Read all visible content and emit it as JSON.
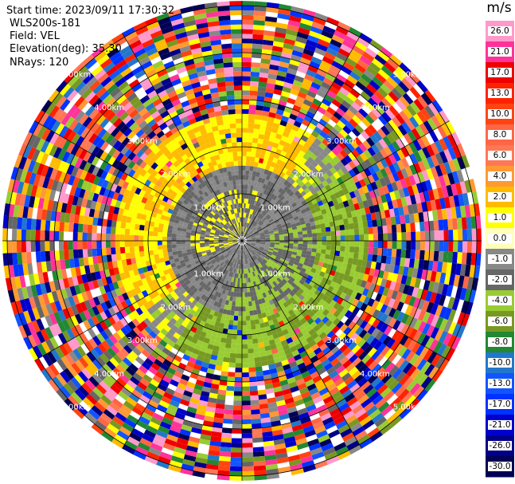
{
  "header": {
    "start_time": "Start time: 2023/09/11 17:30:32",
    "instrument": "WLS200s-181",
    "field": "Field: VEL",
    "elevation": "Elevation(deg): 35.30",
    "nrays": "NRays: 120"
  },
  "chart_data": {
    "type": "heatmap",
    "projection": "polar-ppi",
    "title": "",
    "nrays": 120,
    "range_ring_labels_km": [
      "1.00km",
      "2.00km",
      "3.00km",
      "4.00km",
      "5.00km"
    ],
    "range_rings_km": [
      1,
      2,
      3,
      4,
      5
    ],
    "max_range_km": 5.1,
    "colorbar": {
      "unit": "m/s",
      "tick_labels": [
        "26.0",
        "21.0",
        "17.0",
        "13.0",
        "10.0",
        "8.0",
        "6.0",
        "4.0",
        "2.0",
        "1.0",
        "0.0",
        "-1.0",
        "-2.0",
        "-4.0",
        "-6.0",
        "-8.0",
        "-10.0",
        "-13.0",
        "-17.0",
        "-21.0",
        "-26.0",
        "-30.0"
      ],
      "colors": [
        "#ff99cc",
        "#ff3399",
        "#ee0000",
        "#ff2200",
        "#ff4411",
        "#ff6644",
        "#ff7755",
        "#ff9933",
        "#ffbb00",
        "#ffff00",
        "#ffffbb",
        "#888888",
        "#666666",
        "#99cc33",
        "#779922",
        "#228833",
        "#2277cc",
        "#1155ff",
        "#0033ff",
        "#0000cc",
        "#000088",
        "#000055"
      ]
    },
    "zones": [
      {
        "from_km": 0.0,
        "to_km": 1.6,
        "description": "near-zero velocities, mostly grey with small yellow and green patches"
      },
      {
        "from_km": 1.6,
        "to_km": 2.7,
        "description": "yellow (+2 m/s) to the north-west, green (-2 m/s) to the south-east"
      },
      {
        "from_km": 2.7,
        "to_km": 5.1,
        "description": "noise, random velocities across the full scale"
      }
    ]
  }
}
